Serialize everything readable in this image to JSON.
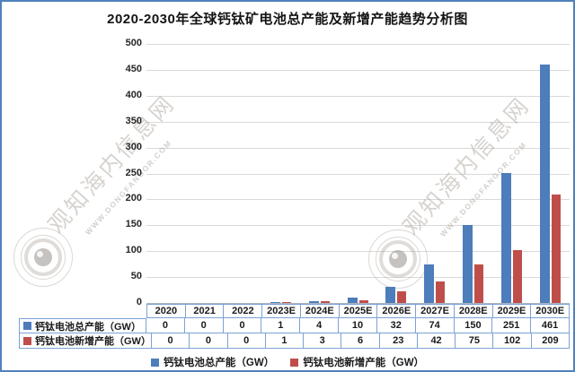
{
  "chart_data": {
    "type": "bar",
    "title": "2020-2030年全球钙钛矿电池总产能及新增产能趋势分析图",
    "categories": [
      "2020",
      "2021",
      "2022",
      "2023E",
      "2024E",
      "2025E",
      "2026E",
      "2027E",
      "2028E",
      "2029E",
      "2030E"
    ],
    "series": [
      {
        "name": "钙钛电池总产能（GW）",
        "color": "#4d7dba",
        "values": [
          0,
          0,
          0,
          1,
          4,
          10,
          32,
          74,
          150,
          251,
          461
        ]
      },
      {
        "name": "钙钛电池新增产能（GW）",
        "color": "#bf4e4b",
        "values": [
          0,
          0,
          0,
          1,
          3,
          6,
          23,
          42,
          75,
          102,
          209
        ]
      }
    ],
    "ylabel": "",
    "xlabel": "",
    "ylim": [
      0,
      500
    ],
    "ytick_step": 50,
    "grid": true,
    "legend_position": "bottom",
    "data_table_shown": true
  },
  "watermark": {
    "site_name": "观知海内信息网",
    "url": "WWW.DONGFANGOR.COM"
  },
  "colors": {
    "frame_border": "#4f81bd",
    "grid_line": "#d9d9d9",
    "table_border": "#7ba2d6",
    "total_series": "#4d7dba",
    "new_series": "#bf4e4b",
    "watermark": "#b0a8a0"
  }
}
